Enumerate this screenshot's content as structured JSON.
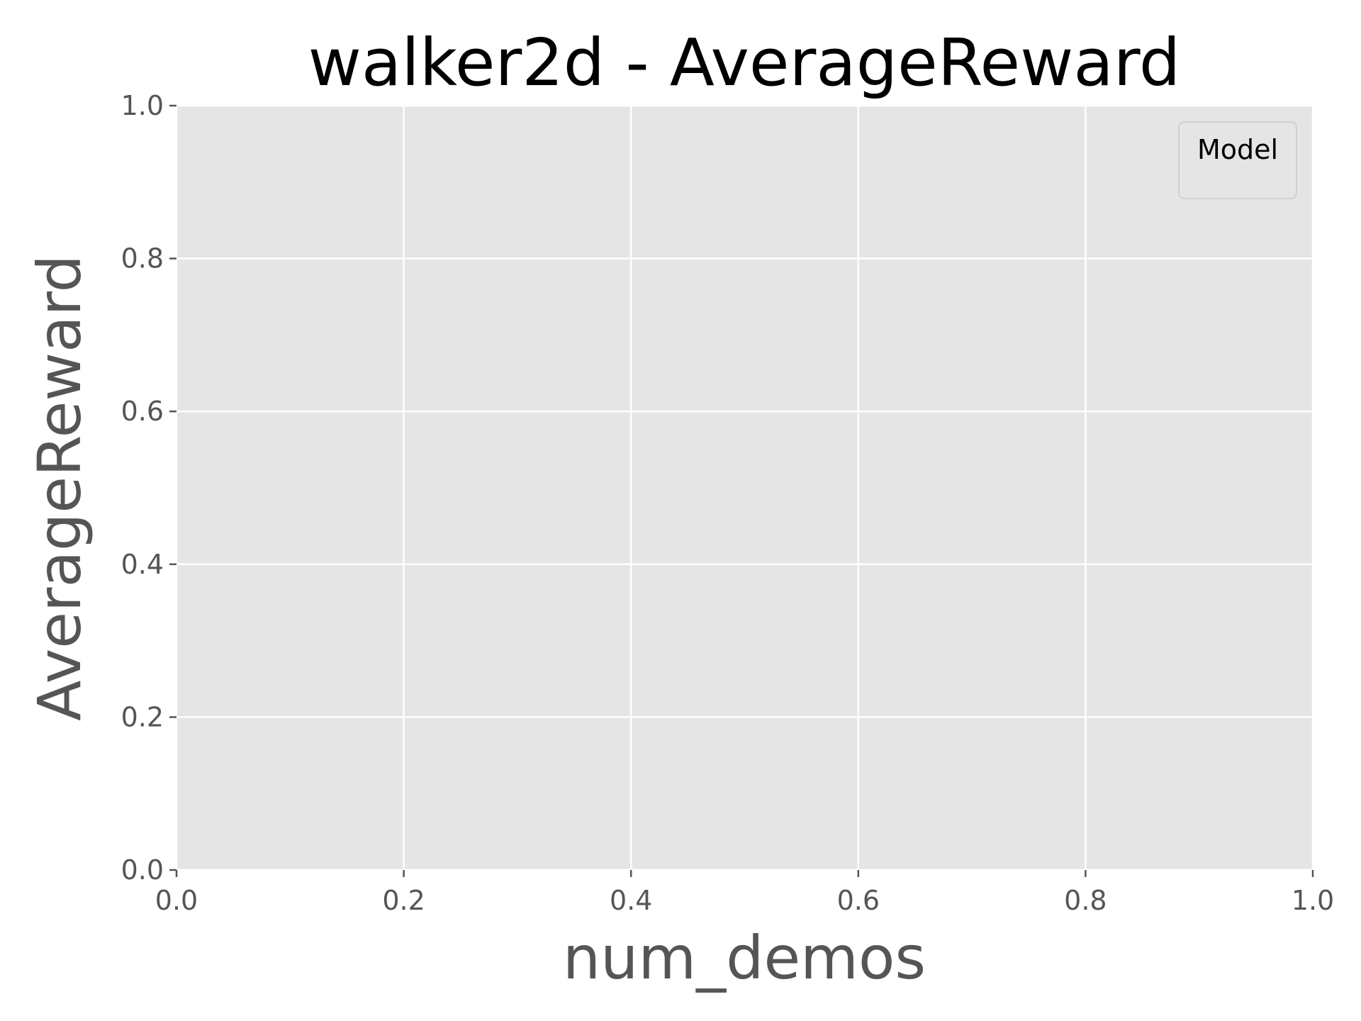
{
  "chart_data": {
    "type": "line",
    "title": "walker2d - AverageReward",
    "xlabel": "num_demos",
    "ylabel": "AverageReward",
    "xlim": [
      0.0,
      1.0
    ],
    "ylim": [
      0.0,
      1.0
    ],
    "xticks": [
      0.0,
      0.2,
      0.4,
      0.6,
      0.8,
      1.0
    ],
    "yticks": [
      0.0,
      0.2,
      0.4,
      0.6,
      0.8,
      1.0
    ],
    "xtick_labels": [
      "0.0",
      "0.2",
      "0.4",
      "0.6",
      "0.8",
      "1.0"
    ],
    "ytick_labels": [
      "0.0",
      "0.2",
      "0.4",
      "0.6",
      "0.8",
      "1.0"
    ],
    "grid": true,
    "legend": {
      "title": "Model",
      "placement": "top-right",
      "entries": []
    },
    "series": [],
    "colors": {
      "plot_background": "#e5e5e5",
      "grid": "#ffffff",
      "tick": "#555555",
      "title": "#000000",
      "axis_label": "#555555"
    }
  }
}
